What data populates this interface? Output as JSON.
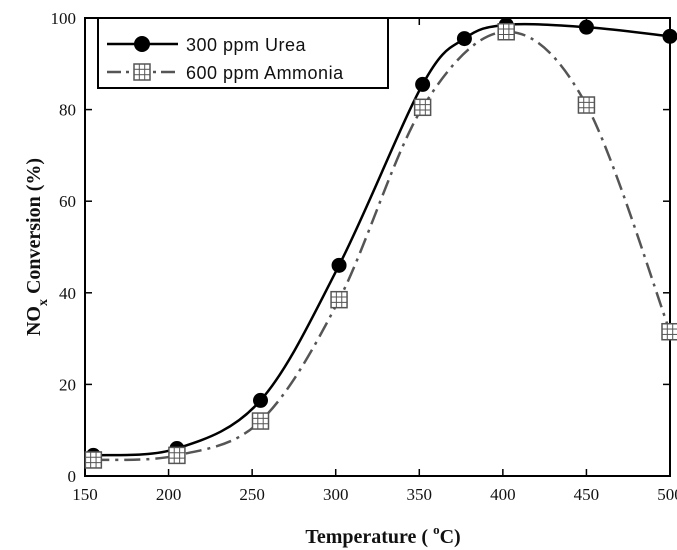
{
  "chart_data": {
    "type": "line",
    "xlabel": "Temperature ( °C)",
    "xlabel_parts": {
      "prefix": "Temperature ( ",
      "degree": "o",
      "suffix": "C)"
    },
    "ylabel": "NOx Conversion (%)",
    "ylabel_parts": {
      "prefix": "NO",
      "subscript": "x",
      "suffix": " Conversion (%)"
    },
    "xlim": [
      150,
      500
    ],
    "ylim": [
      0,
      100
    ],
    "xticks": [
      150,
      200,
      250,
      300,
      350,
      400,
      450,
      500
    ],
    "yticks": [
      0,
      20,
      40,
      60,
      80,
      100
    ],
    "grid": false,
    "legend_position": "top-left",
    "series": [
      {
        "name": "300 ppm Urea",
        "marker": "filled-circle",
        "line_style": "solid",
        "color": "#000000",
        "x": [
          155,
          205,
          255,
          302,
          352,
          377,
          402,
          450,
          500
        ],
        "y": [
          4.5,
          6,
          16.5,
          46,
          85.5,
          95.5,
          98.5,
          98,
          96
        ]
      },
      {
        "name": "600 ppm Ammonia",
        "marker": "square-grid",
        "line_style": "dash-dot",
        "color": "#555555",
        "x": [
          155,
          205,
          255,
          302,
          352,
          402,
          450,
          500
        ],
        "y": [
          3.5,
          4.5,
          12,
          38.5,
          80.5,
          97,
          81,
          31.5
        ]
      }
    ]
  }
}
